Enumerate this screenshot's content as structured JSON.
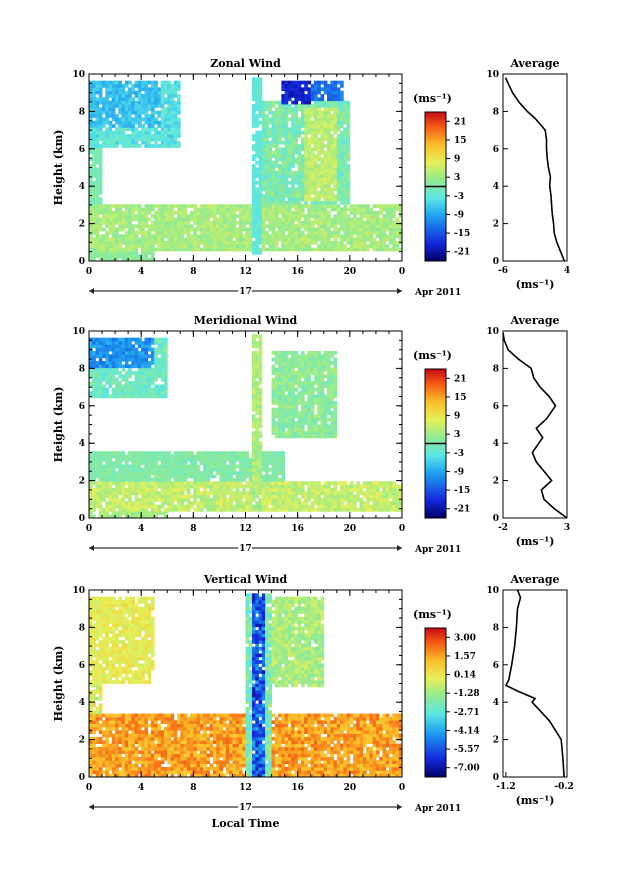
{
  "chart_data": [
    {
      "type": "heatmap",
      "title": "Zonal Wind",
      "xlabel": "",
      "ylabel": "Height (km)",
      "xlim": [
        0,
        24
      ],
      "ylim": [
        0,
        10
      ],
      "xticks": [
        "0",
        "4",
        "8",
        "12",
        "16",
        "20",
        "0"
      ],
      "yticks": [
        "0",
        "2",
        "4",
        "6",
        "8",
        "10"
      ],
      "date_label": "17",
      "month_label": "Apr 2011",
      "colorbar": {
        "unit": "(ms⁻¹)",
        "ticks": [
          "21",
          "15",
          "9",
          "3",
          "-3",
          "-9",
          "-15",
          "-21"
        ],
        "range": [
          -24,
          24
        ]
      },
      "average": {
        "title": "Average",
        "xlabel": "(ms⁻¹)",
        "xticks": [
          "-6",
          "4"
        ],
        "xlim": [
          -6,
          4
        ],
        "yticks": [
          "0",
          "2",
          "4",
          "6",
          "8",
          "10"
        ],
        "profile": [
          [
            0,
            3.6
          ],
          [
            0.5,
            3.0
          ],
          [
            1,
            2.4
          ],
          [
            1.5,
            2.0
          ],
          [
            2,
            1.9
          ],
          [
            2.5,
            1.7
          ],
          [
            3,
            1.6
          ],
          [
            3.5,
            1.5
          ],
          [
            4,
            1.3
          ],
          [
            4.5,
            1.4
          ],
          [
            5,
            1.1
          ],
          [
            5.5,
            0.9
          ],
          [
            6,
            0.8
          ],
          [
            6.5,
            0.8
          ],
          [
            7,
            0.6
          ],
          [
            7.2,
            0.1
          ],
          [
            7.6,
            -0.9
          ],
          [
            8,
            -2.2
          ],
          [
            8.5,
            -3.5
          ],
          [
            9,
            -4.5
          ],
          [
            9.5,
            -5.2
          ],
          [
            9.8,
            -5.6
          ]
        ]
      }
    },
    {
      "type": "heatmap",
      "title": "Meridional Wind",
      "xlabel": "",
      "ylabel": "Height (km)",
      "xlim": [
        0,
        24
      ],
      "ylim": [
        0,
        10
      ],
      "xticks": [
        "0",
        "4",
        "8",
        "12",
        "16",
        "20",
        "0"
      ],
      "yticks": [
        "0",
        "2",
        "4",
        "6",
        "8",
        "10"
      ],
      "date_label": "17",
      "month_label": "Apr 2011",
      "colorbar": {
        "unit": "(ms⁻¹)",
        "ticks": [
          "21",
          "15",
          "9",
          "3",
          "-3",
          "-9",
          "-15",
          "-21"
        ],
        "range": [
          -24,
          24
        ]
      },
      "average": {
        "title": "Average",
        "xlabel": "(ms⁻¹)",
        "xticks": [
          "-2",
          "3"
        ],
        "xlim": [
          -2,
          3
        ],
        "yticks": [
          "0",
          "2",
          "4",
          "6",
          "8",
          "10"
        ],
        "profile": [
          [
            0,
            3.0
          ],
          [
            0.5,
            2.0
          ],
          [
            1,
            1.2
          ],
          [
            1.5,
            1.0
          ],
          [
            2,
            1.8
          ],
          [
            2.5,
            1.2
          ],
          [
            3,
            0.6
          ],
          [
            3.5,
            0.3
          ],
          [
            4,
            0.8
          ],
          [
            4.3,
            1.1
          ],
          [
            4.8,
            0.6
          ],
          [
            5.3,
            1.4
          ],
          [
            6,
            2.1
          ],
          [
            6.5,
            1.6
          ],
          [
            7,
            0.9
          ],
          [
            7.5,
            0.4
          ],
          [
            8,
            0.2
          ],
          [
            8.5,
            -0.8
          ],
          [
            9,
            -1.6
          ],
          [
            9.5,
            -1.9
          ],
          [
            9.9,
            -2.0
          ]
        ]
      }
    },
    {
      "type": "heatmap",
      "title": "Vertical Wind",
      "xlabel": "Local Time",
      "ylabel": "Height (km)",
      "xlim": [
        0,
        24
      ],
      "ylim": [
        0,
        10
      ],
      "xticks": [
        "0",
        "4",
        "8",
        "12",
        "16",
        "20",
        "0"
      ],
      "yticks": [
        "0",
        "2",
        "4",
        "6",
        "8",
        "10"
      ],
      "date_label": "17",
      "month_label": "Apr 2011",
      "colorbar": {
        "unit": "(ms⁻¹)",
        "ticks": [
          "3.00",
          "1.57",
          "0.14",
          "-1.28",
          "-2.71",
          "-4.14",
          "-5.57",
          "-7.00"
        ],
        "range": [
          -7.7,
          3.7
        ]
      },
      "average": {
        "title": "Average",
        "xlabel": "(ms⁻¹)",
        "xticks": [
          "-1.2",
          "-0.2"
        ],
        "xlim": [
          -1.25,
          -0.15
        ],
        "yticks": [
          "0",
          "2",
          "4",
          "6",
          "8",
          "10"
        ],
        "profile": [
          [
            0,
            -0.2
          ],
          [
            1,
            -0.22
          ],
          [
            2,
            -0.25
          ],
          [
            2.5,
            -0.35
          ],
          [
            3,
            -0.45
          ],
          [
            3.5,
            -0.6
          ],
          [
            4,
            -0.75
          ],
          [
            4.2,
            -0.7
          ],
          [
            4.6,
            -1.0
          ],
          [
            4.9,
            -1.2
          ],
          [
            5.2,
            -1.15
          ],
          [
            6,
            -1.1
          ],
          [
            7,
            -1.05
          ],
          [
            8,
            -1.02
          ],
          [
            9,
            -1.0
          ],
          [
            9.6,
            -0.95
          ],
          [
            10,
            -1.0
          ]
        ]
      }
    }
  ]
}
